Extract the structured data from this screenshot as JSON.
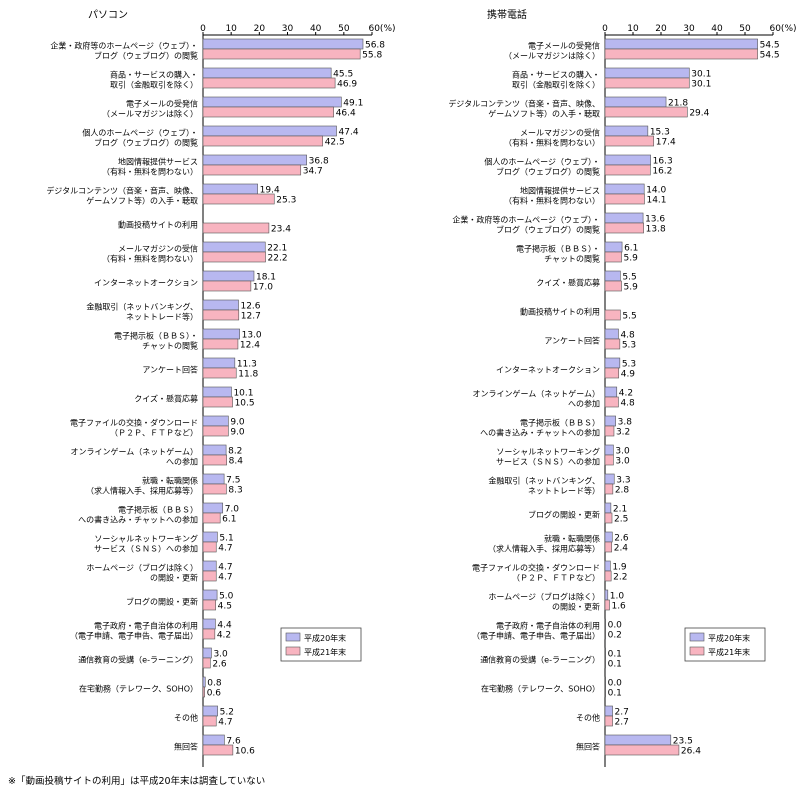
{
  "footnote": "※「動画投稿サイトの利用」は平成20年末は調査していない",
  "chart_data": [
    {
      "type": "bar",
      "orientation": "horizontal",
      "title": "パソコン",
      "axis_unit": "(%)",
      "xlim": [
        0,
        60
      ],
      "ticks": [
        0,
        10,
        20,
        30,
        40,
        50,
        60
      ],
      "legend_position": "bottom-right",
      "series_colors": [
        "#b8b8f0",
        "#f8b4c0"
      ],
      "series": [
        {
          "name": "平成20年末",
          "values": [
            56.8,
            45.5,
            49.1,
            47.4,
            36.8,
            19.4,
            null,
            22.1,
            18.1,
            12.6,
            13.0,
            11.3,
            10.1,
            9.0,
            8.2,
            7.5,
            7.0,
            5.1,
            4.7,
            5.0,
            4.4,
            3.0,
            0.8,
            5.2,
            7.6
          ]
        },
        {
          "name": "平成21年末",
          "values": [
            55.8,
            46.9,
            46.4,
            42.5,
            34.7,
            25.3,
            23.4,
            22.2,
            17.0,
            12.7,
            12.4,
            11.8,
            10.5,
            9.0,
            8.4,
            8.3,
            6.1,
            4.7,
            4.7,
            4.5,
            4.2,
            2.6,
            0.6,
            4.7,
            10.6
          ]
        }
      ],
      "categories": [
        [
          "企業・政府等のホームページ（ウェブ）・",
          "ブログ（ウェブログ）の閲覧"
        ],
        [
          "商品・サービスの購入・",
          "取引（金融取引を除く）"
        ],
        [
          "電子メールの受発信",
          "（メールマガジンは除く）"
        ],
        [
          "個人のホームページ（ウェブ）・",
          "ブログ（ウェブログ）の閲覧"
        ],
        [
          "地図情報提供サービス",
          "（有料・無料を問わない）"
        ],
        [
          "デジタルコンテンツ（音楽・音声、映像、",
          "ゲームソフト等）の入手・聴取"
        ],
        [
          "動画投稿サイトの利用"
        ],
        [
          "メールマガジンの受信",
          "（有料・無料を問わない）"
        ],
        [
          "インターネットオークション"
        ],
        [
          "金融取引（ネットバンキング、",
          "ネットトレード等）"
        ],
        [
          "電子掲示板（ＢＢＳ）・",
          "チャットの閲覧"
        ],
        [
          "アンケート回答"
        ],
        [
          "クイズ・懸賞応募"
        ],
        [
          "電子ファイルの交換・ダウンロード",
          "（Ｐ２Ｐ、ＦＴＰなど）"
        ],
        [
          "オンラインゲーム（ネットゲーム）",
          "への参加"
        ],
        [
          "就職・転職関係",
          "（求人情報入手、採用応募等）"
        ],
        [
          "電子掲示板（ＢＢＳ）",
          "への書き込み・チャットへの参加"
        ],
        [
          "ソーシャルネットワーキング",
          "サービス（ＳＮＳ）への参加"
        ],
        [
          "ホームページ（ブログは除く）",
          "の開設・更新"
        ],
        [
          "ブログの開設・更新"
        ],
        [
          "電子政府・電子自治体の利用",
          "（電子申請、電子申告、電子届出）"
        ],
        [
          "通信教育の受講（e-ラーニング）"
        ],
        [
          "在宅勤務（テレワーク、SOHO）"
        ],
        [
          "その他"
        ],
        [
          "無回答"
        ]
      ]
    },
    {
      "type": "bar",
      "orientation": "horizontal",
      "title": "携帯電話",
      "axis_unit": "(%)",
      "xlim": [
        0,
        60
      ],
      "ticks": [
        0,
        10,
        20,
        30,
        40,
        50,
        60
      ],
      "legend_position": "bottom-right",
      "series_colors": [
        "#b8b8f0",
        "#f8b4c0"
      ],
      "series": [
        {
          "name": "平成20年末",
          "values": [
            54.5,
            30.1,
            21.8,
            15.3,
            16.3,
            14.0,
            13.6,
            6.1,
            5.5,
            null,
            4.8,
            5.3,
            4.2,
            3.8,
            3.0,
            3.3,
            2.1,
            2.6,
            1.9,
            1.0,
            0.0,
            0.1,
            0.0,
            2.7,
            23.5
          ]
        },
        {
          "name": "平成21年末",
          "values": [
            54.5,
            30.1,
            29.4,
            17.4,
            16.2,
            14.1,
            13.8,
            5.9,
            5.9,
            5.5,
            5.3,
            4.9,
            4.8,
            3.2,
            3.0,
            2.8,
            2.5,
            2.4,
            2.2,
            1.6,
            0.2,
            0.1,
            0.1,
            2.7,
            26.4
          ]
        }
      ],
      "categories": [
        [
          "電子メールの受発信",
          "（メールマガジンは除く）"
        ],
        [
          "商品・サービスの購入・",
          "取引（金融取引を除く）"
        ],
        [
          "デジタルコンテンツ（音楽・音声、映像、",
          "ゲームソフト等）の入手・聴取"
        ],
        [
          "メールマガジンの受信",
          "（有料・無料を問わない）"
        ],
        [
          "個人のホームページ（ウェブ）・",
          "ブログ（ウェブログ）の閲覧"
        ],
        [
          "地図情報提供サービス",
          "（有料・無料を問わない）"
        ],
        [
          "企業・政府等のホームページ（ウェブ）・",
          "ブログ（ウェブログ）の閲覧"
        ],
        [
          "電子掲示板（ＢＢＳ）・",
          "チャットの閲覧"
        ],
        [
          "クイズ・懸賞応募"
        ],
        [
          "動画投稿サイトの利用"
        ],
        [
          "アンケート回答"
        ],
        [
          "インターネットオークション"
        ],
        [
          "オンラインゲーム（ネットゲーム）",
          "への参加"
        ],
        [
          "電子掲示板（ＢＢＳ）",
          "への書き込み・チャットへの参加"
        ],
        [
          "ソーシャルネットワーキング",
          "サービス（ＳＮＳ）への参加"
        ],
        [
          "金融取引（ネットバンキング、",
          "ネットトレード等）"
        ],
        [
          "ブログの開設・更新"
        ],
        [
          "就職・転職関係",
          "（求人情報入手、採用応募等）"
        ],
        [
          "電子ファイルの交換・ダウンロード",
          "（Ｐ２Ｐ、ＦＴＰなど）"
        ],
        [
          "ホームページ（ブログは除く）",
          "の開設・更新"
        ],
        [
          "電子政府・電子自治体の利用",
          "（電子申請、電子申告、電子届出）"
        ],
        [
          "通信教育の受講（e-ラーニング）"
        ],
        [
          "在宅勤務（テレワーク、SOHO）"
        ],
        [
          "その他"
        ],
        [
          "無回答"
        ]
      ]
    }
  ]
}
